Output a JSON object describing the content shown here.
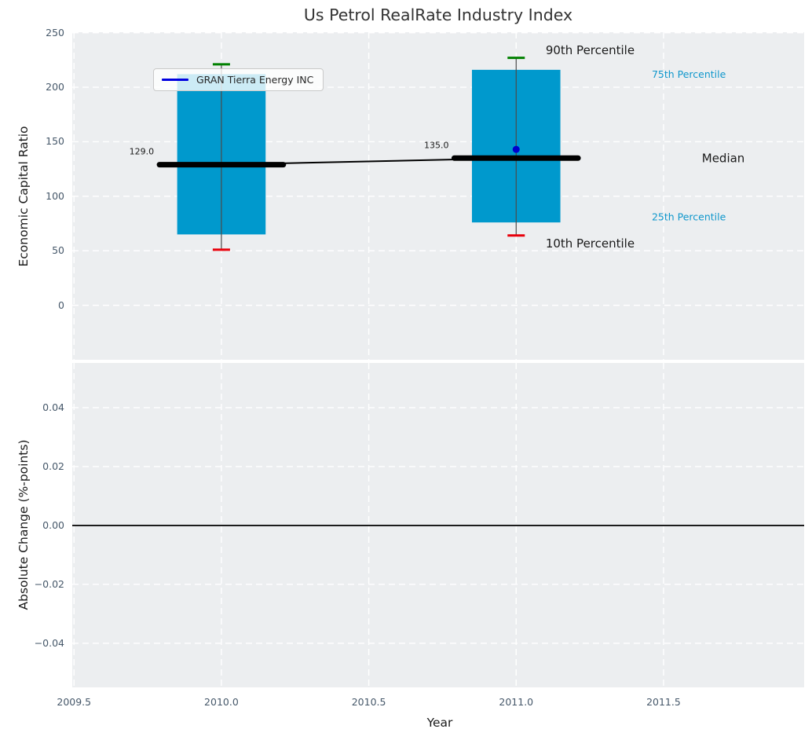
{
  "title": "Us Petrol RealRate Industry Index",
  "legend": {
    "label": "GRAN Tierra Energy INC",
    "line_color": "#0000e0"
  },
  "colors": {
    "bar": "#0099cd",
    "p90_cap": "#008000",
    "p10_cap": "#e8000b",
    "median": "#000000",
    "median_trend": "#000000",
    "company": "#0000cd",
    "cyan_label": "#0f97cc",
    "dark_label": "#1a1a1a",
    "axes_bg": "#eceef0",
    "grid": "#ffffff",
    "tick_text": "#46586a",
    "whisker": "#4a4a4a",
    "zero_line": "#000000"
  },
  "chart_data": [
    {
      "type": "bar",
      "title": "Us Petrol RealRate Industry Index",
      "ylabel": "Economic Capital Ratio",
      "xlabel": "",
      "ylim": [
        -50,
        250.5
      ],
      "xlim": [
        2009.494,
        2011.977
      ],
      "grid": "white-dashed",
      "legend_position": "upper-left",
      "yticks": {
        "values": [
          250,
          200,
          150,
          100,
          50,
          0
        ],
        "labels": [
          "250",
          "200",
          "150",
          "100",
          "50",
          "0"
        ]
      },
      "xticks": {
        "values": [
          2009.5,
          2010.0,
          2010.5,
          2011.0,
          2011.5
        ],
        "labels": [
          "2009.5",
          "2010.0",
          "2010.5",
          "2011.0",
          "2011.5"
        ]
      },
      "bar_width_years": 0.3,
      "median_width_years": 0.42,
      "series": [
        {
          "year": 2010,
          "p10": 51,
          "p25": 65,
          "median": 129,
          "p75": 212,
          "p90": 221,
          "median_label": "129.0"
        },
        {
          "year": 2011,
          "p10": 64,
          "p25": 76,
          "median": 135,
          "p75": 216,
          "p90": 227,
          "median_label": "135.0"
        }
      ],
      "median_trend": [
        {
          "year": 2010,
          "value": 129
        },
        {
          "year": 2011,
          "value": 135
        }
      ],
      "company_series": {
        "name": "GRAN Tierra Energy INC",
        "points": [
          {
            "year": 2011,
            "value": 143
          }
        ]
      },
      "annotations": [
        {
          "text": "90th Percentile",
          "x": 2011.1,
          "y": 234,
          "color_key": "dark_label",
          "size": 15
        },
        {
          "text": "75th Percentile",
          "x": 2011.46,
          "y": 212,
          "color_key": "cyan_label",
          "size": 12.5
        },
        {
          "text": "Median",
          "x": 2011.63,
          "y": 135,
          "color_key": "dark_label",
          "size": 15
        },
        {
          "text": "25th Percentile",
          "x": 2011.46,
          "y": 81,
          "color_key": "cyan_label",
          "size": 12.5
        },
        {
          "text": "10th Percentile",
          "x": 2011.1,
          "y": 57,
          "color_key": "dark_label",
          "size": 15
        }
      ]
    },
    {
      "type": "line",
      "title": "",
      "ylabel": "Absolute Change (%-points)",
      "xlabel": "Year",
      "ylim": [
        -0.055,
        0.0552
      ],
      "xlim": [
        2009.494,
        2011.977
      ],
      "grid": "white-dashed",
      "yticks": {
        "values": [
          0.04,
          0.02,
          0.0,
          -0.02,
          -0.04
        ],
        "labels": [
          "0.04",
          "0.02",
          "0.00",
          "−0.02",
          "−0.04"
        ]
      },
      "xticks": {
        "values": [
          2009.5,
          2010.0,
          2010.5,
          2011.0,
          2011.5
        ],
        "labels": [
          "2009.5",
          "2010.0",
          "2010.5",
          "2011.0",
          "2011.5"
        ]
      },
      "zero_line": {
        "value": 0.0
      },
      "series": []
    }
  ]
}
